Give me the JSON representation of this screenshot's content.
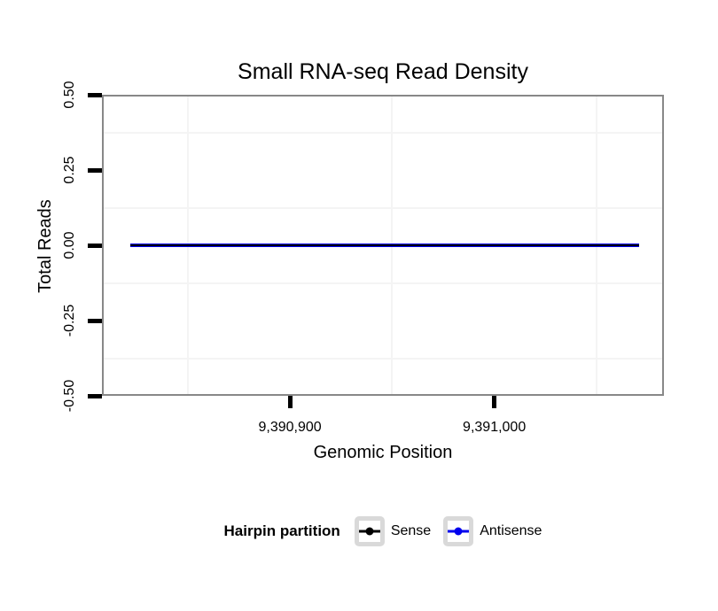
{
  "figure": {
    "background": "#ffffff"
  },
  "chart_data": {
    "type": "line",
    "title": "Small RNA-seq Read Density",
    "xlabel": "Genomic Position",
    "ylabel": "Total Reads",
    "xlim": [
      9390808,
      9391083
    ],
    "ylim": [
      -0.5,
      0.5
    ],
    "x_ticks": {
      "values": [
        9390900,
        9391000
      ],
      "labels": [
        "9,390,900",
        "9,391,000"
      ]
    },
    "y_ticks": {
      "values": [
        0.5,
        0.25,
        0,
        -0.25,
        -0.5
      ],
      "labels": [
        "0.50",
        "0.25",
        "0.00",
        "-0.25",
        "-0.50"
      ]
    },
    "grid": {
      "minor_gridlines_only": true,
      "color": "#f4f4f4"
    },
    "panel": {
      "border_color": "#888888",
      "background": "#ffffff"
    },
    "axis": {
      "tick_color": "#000000",
      "text_color": "#000000"
    },
    "series": [
      {
        "name": "Sense",
        "color": "#000000",
        "line_width": 2,
        "x": [
          9390822,
          9391071
        ],
        "y": [
          0,
          0
        ]
      },
      {
        "name": "Antisense",
        "color": "#0000ee",
        "line_width": 4,
        "x": [
          9390822,
          9391071
        ],
        "y": [
          0,
          0
        ]
      }
    ],
    "legend": {
      "title": "Hairpin partition",
      "position": "bottom",
      "key_border_color": "#d9d9d9"
    }
  }
}
